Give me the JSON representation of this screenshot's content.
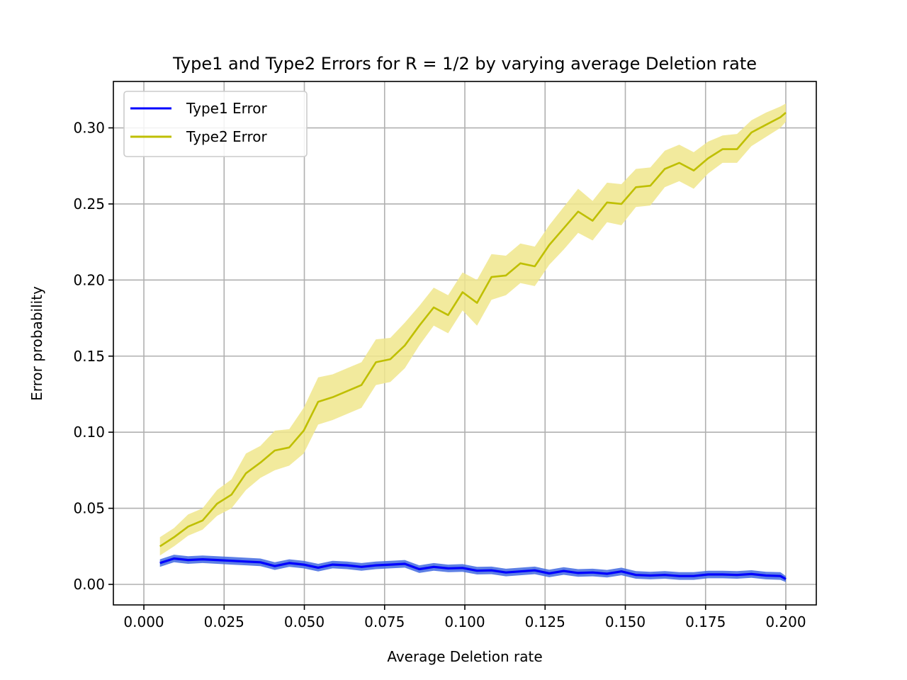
{
  "chart_data": {
    "type": "line",
    "title": "Type1 and Type2 Errors for R = 1/2 by varying average Deletion rate",
    "xlabel": "Average Deletion rate",
    "ylabel": "Error probability",
    "xlim": [
      -0.0095,
      0.2095
    ],
    "ylim": [
      -0.0135,
      0.3305
    ],
    "xticks": [
      0.0,
      0.025,
      0.05,
      0.075,
      0.1,
      0.125,
      0.15,
      0.175,
      0.2
    ],
    "xtick_labels": [
      "0.000",
      "0.025",
      "0.050",
      "0.075",
      "0.100",
      "0.125",
      "0.150",
      "0.175",
      "0.200"
    ],
    "yticks": [
      0.0,
      0.05,
      0.1,
      0.15,
      0.2,
      0.25,
      0.3
    ],
    "ytick_labels": [
      "0.00",
      "0.05",
      "0.10",
      "0.15",
      "0.20",
      "0.25",
      "0.30"
    ],
    "grid": true,
    "legend_position": "upper-left",
    "x": [
      0.005,
      0.0094,
      0.0138,
      0.0183,
      0.0228,
      0.0273,
      0.0318,
      0.0363,
      0.0408,
      0.0453,
      0.0498,
      0.0543,
      0.0588,
      0.0633,
      0.0678,
      0.0723,
      0.0768,
      0.0813,
      0.0858,
      0.0903,
      0.0948,
      0.0993,
      0.1038,
      0.1083,
      0.1128,
      0.1173,
      0.1218,
      0.1263,
      0.1308,
      0.1353,
      0.1398,
      0.1443,
      0.1488,
      0.1533,
      0.1578,
      0.1623,
      0.1668,
      0.1713,
      0.1758,
      0.1803,
      0.1848,
      0.1893,
      0.1938,
      0.1983,
      0.2
    ],
    "series": [
      {
        "name": "Type1 Error",
        "color": "#0000ff",
        "band_color": "#4169e1",
        "values": [
          0.014,
          0.017,
          0.016,
          0.0165,
          0.016,
          0.0155,
          0.015,
          0.0145,
          0.012,
          0.014,
          0.013,
          0.011,
          0.013,
          0.0125,
          0.0115,
          0.0125,
          0.013,
          0.0135,
          0.01,
          0.0115,
          0.0105,
          0.0108,
          0.009,
          0.0092,
          0.0078,
          0.0085,
          0.0092,
          0.0072,
          0.0088,
          0.0075,
          0.0078,
          0.007,
          0.0085,
          0.0062,
          0.0058,
          0.0062,
          0.0055,
          0.0055,
          0.0065,
          0.0065,
          0.0062,
          0.0068,
          0.0058,
          0.0055,
          0.0035
        ],
        "lower": [
          0.0115,
          0.0145,
          0.0135,
          0.014,
          0.0135,
          0.013,
          0.0125,
          0.012,
          0.0095,
          0.0115,
          0.0105,
          0.0085,
          0.0105,
          0.01,
          0.009,
          0.01,
          0.0105,
          0.011,
          0.0075,
          0.009,
          0.008,
          0.0083,
          0.0065,
          0.0067,
          0.0053,
          0.006,
          0.0067,
          0.0047,
          0.0063,
          0.005,
          0.0053,
          0.0045,
          0.006,
          0.0037,
          0.0033,
          0.0037,
          0.003,
          0.003,
          0.004,
          0.004,
          0.0037,
          0.0043,
          0.0033,
          0.003,
          0.0015
        ],
        "upper": [
          0.0165,
          0.0195,
          0.0185,
          0.019,
          0.0185,
          0.018,
          0.0175,
          0.017,
          0.0145,
          0.0165,
          0.0155,
          0.0135,
          0.0155,
          0.015,
          0.014,
          0.015,
          0.0155,
          0.016,
          0.0125,
          0.014,
          0.013,
          0.0133,
          0.0115,
          0.0117,
          0.0103,
          0.011,
          0.0117,
          0.0097,
          0.0113,
          0.01,
          0.0103,
          0.0095,
          0.011,
          0.0087,
          0.0083,
          0.0087,
          0.008,
          0.008,
          0.009,
          0.009,
          0.0087,
          0.0093,
          0.0083,
          0.008,
          0.0055
        ]
      },
      {
        "name": "Type2 Error",
        "color": "#bfbf00",
        "band_color": "#f0e68c",
        "values": [
          0.025,
          0.031,
          0.038,
          0.042,
          0.053,
          0.059,
          0.073,
          0.08,
          0.088,
          0.09,
          0.101,
          0.12,
          0.123,
          0.127,
          0.131,
          0.146,
          0.148,
          0.157,
          0.17,
          0.182,
          0.177,
          0.192,
          0.185,
          0.202,
          0.203,
          0.211,
          0.209,
          0.223,
          0.234,
          0.245,
          0.239,
          0.251,
          0.25,
          0.261,
          0.262,
          0.273,
          0.277,
          0.272,
          0.28,
          0.286,
          0.286,
          0.297,
          0.302,
          0.307,
          0.31
        ],
        "lower": [
          0.019,
          0.025,
          0.032,
          0.036,
          0.045,
          0.05,
          0.062,
          0.07,
          0.075,
          0.078,
          0.086,
          0.105,
          0.108,
          0.112,
          0.116,
          0.131,
          0.133,
          0.142,
          0.157,
          0.17,
          0.165,
          0.18,
          0.17,
          0.187,
          0.19,
          0.198,
          0.196,
          0.21,
          0.22,
          0.231,
          0.226,
          0.238,
          0.236,
          0.248,
          0.249,
          0.261,
          0.265,
          0.26,
          0.27,
          0.277,
          0.277,
          0.288,
          0.294,
          0.3,
          0.304
        ],
        "upper": [
          0.031,
          0.037,
          0.046,
          0.05,
          0.062,
          0.069,
          0.086,
          0.091,
          0.101,
          0.102,
          0.116,
          0.136,
          0.138,
          0.142,
          0.146,
          0.161,
          0.162,
          0.172,
          0.183,
          0.195,
          0.19,
          0.205,
          0.2,
          0.217,
          0.216,
          0.224,
          0.222,
          0.236,
          0.248,
          0.26,
          0.252,
          0.264,
          0.263,
          0.273,
          0.274,
          0.285,
          0.289,
          0.284,
          0.291,
          0.295,
          0.296,
          0.305,
          0.31,
          0.314,
          0.316
        ]
      }
    ]
  }
}
